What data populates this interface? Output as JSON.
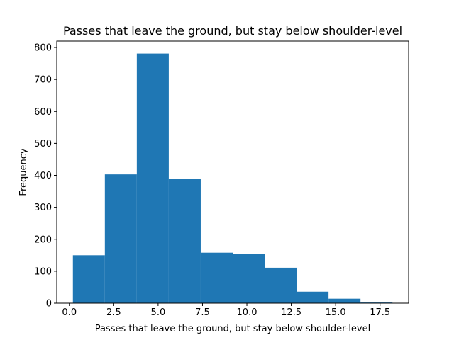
{
  "chart_data": {
    "type": "bar",
    "title": "Passes that leave the ground, but stay below shoulder-level",
    "xlabel": "Passes that leave the ground, but stay below shoulder-level",
    "ylabel": "Frequency",
    "bin_edges": [
      0.2,
      2.0,
      3.8,
      5.6,
      7.4,
      9.2,
      11.0,
      12.8,
      14.6,
      16.4,
      18.2
    ],
    "values": [
      150,
      403,
      781,
      389,
      158,
      154,
      111,
      36,
      14,
      2
    ],
    "xlim": [
      -0.71,
      19.11
    ],
    "ylim": [
      0,
      820
    ],
    "xticks": [
      0.0,
      2.5,
      5.0,
      7.5,
      10.0,
      12.5,
      15.0,
      17.5
    ],
    "xtick_labels": [
      "0.0",
      "2.5",
      "5.0",
      "7.5",
      "10.0",
      "12.5",
      "15.0",
      "17.5"
    ],
    "yticks": [
      0,
      100,
      200,
      300,
      400,
      500,
      600,
      700,
      800
    ],
    "ytick_labels": [
      "0",
      "100",
      "200",
      "300",
      "400",
      "500",
      "600",
      "700",
      "800"
    ],
    "bar_color": "#1f77b4",
    "grid": false,
    "legend": "none"
  }
}
